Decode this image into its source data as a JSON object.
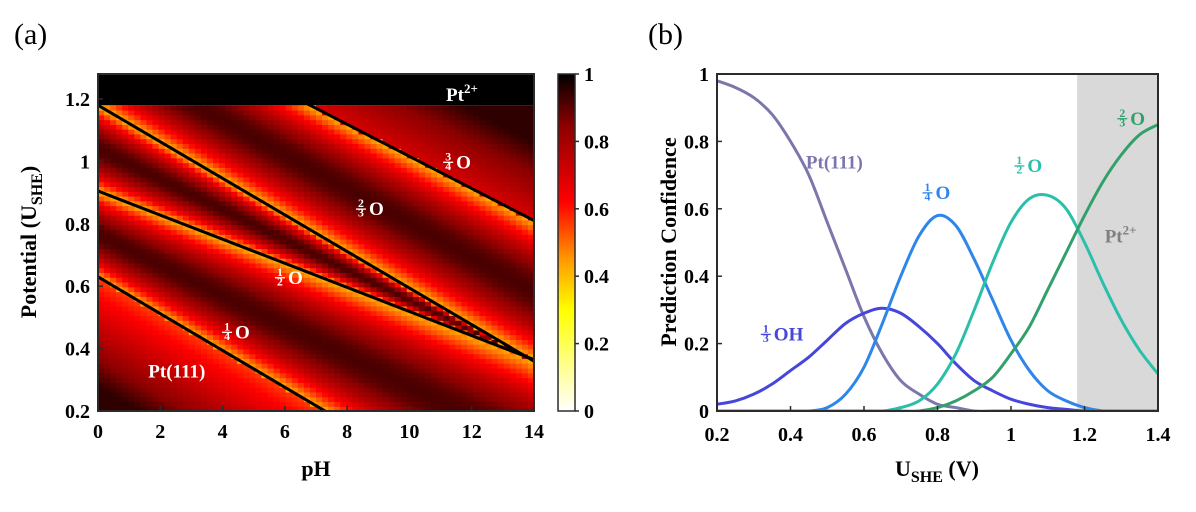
{
  "panels": {
    "a": {
      "label": "(a)"
    },
    "b": {
      "label": "(b)"
    }
  },
  "colors": {
    "pt111": "#7b77ad",
    "third_oh": "#4646dc",
    "quarter_o": "#2e86ea",
    "half_o": "#2bbfaa",
    "twothird_o": "#33a06b",
    "pt2_region": "#d9d9d9",
    "heatmap_white": "#ffffff",
    "heatmap_yellow": "#ffff00",
    "heatmap_orange": "#ff9900",
    "heatmap_red": "#ff0000",
    "heatmap_dark": "#8b0000",
    "heatmap_black": "#000000"
  },
  "chart_data": [
    {
      "type": "heatmap",
      "title": "",
      "xlabel": "pH",
      "ylabel": "Potential (U",
      "ylabel_sub": "SHE",
      "ylabel_end": ")",
      "xlim": [
        0,
        14
      ],
      "ylim": [
        0.2,
        1.28
      ],
      "xticks": [
        "0",
        "2",
        "4",
        "6",
        "8",
        "10",
        "12",
        "14"
      ],
      "yticks": [
        "0.2",
        "0.4",
        "0.6",
        "0.8",
        "1",
        "1.2"
      ],
      "colorbar": {
        "range": [
          0,
          1
        ],
        "ticks": [
          "0",
          "0.2",
          "0.4",
          "0.6",
          "0.8",
          "1"
        ]
      },
      "top_band": {
        "from_potential": 1.18,
        "label": "Pt",
        "label_sup": "2+"
      },
      "boundaries": [
        {
          "potential_at_pH0": 0.63,
          "slope_V_per_pH": -0.059
        },
        {
          "potential_at_pH0": 0.905,
          "slope_V_per_pH": -0.0386
        },
        {
          "potential_at_pH0": 1.18,
          "slope_V_per_pH": -0.0586
        },
        {
          "potential_at_pH0": 1.53,
          "slope_V_per_pH": -0.0514
        }
      ],
      "region_labels": [
        {
          "num": "",
          "den": "",
          "text": "Pt(111)",
          "pH": 2.0,
          "U": 0.33
        },
        {
          "num": "1",
          "den": "4",
          "text": "O",
          "pH": 4.4,
          "U": 0.455
        },
        {
          "num": "1",
          "den": "2",
          "text": "O",
          "pH": 6.1,
          "U": 0.63
        },
        {
          "num": "2",
          "den": "3",
          "text": "O",
          "pH": 8.7,
          "U": 0.85
        },
        {
          "num": "3",
          "den": "4",
          "text": "O",
          "pH": 11.5,
          "U": 1.0
        }
      ]
    },
    {
      "type": "line",
      "title": "",
      "xlabel": "U",
      "xlabel_sub": "SHE",
      "xlabel_end": " (V)",
      "ylabel": "Prediction Confidence",
      "xlim": [
        0.2,
        1.4
      ],
      "ylim": [
        0,
        1
      ],
      "xticks": [
        "0.2",
        "0.4",
        "0.6",
        "0.8",
        "1",
        "1.2",
        "1.4"
      ],
      "yticks": [
        "0",
        "0.2",
        "0.4",
        "0.6",
        "0.8",
        "1"
      ],
      "shaded_region": {
        "from": 1.18,
        "to": 1.4,
        "label": "Pt",
        "label_sup": "2+"
      },
      "x": [
        0.2,
        0.25,
        0.3,
        0.35,
        0.4,
        0.45,
        0.5,
        0.55,
        0.6,
        0.65,
        0.7,
        0.75,
        0.8,
        0.85,
        0.9,
        0.95,
        1.0,
        1.05,
        1.1,
        1.15,
        1.2,
        1.25,
        1.3,
        1.35,
        1.4
      ],
      "series": [
        {
          "name": "Pt(111)",
          "num": "",
          "den": "",
          "label": "Pt(111)",
          "color_key": "pt111",
          "values": [
            0.98,
            0.96,
            0.93,
            0.88,
            0.8,
            0.7,
            0.56,
            0.42,
            0.28,
            0.17,
            0.09,
            0.05,
            0.02,
            0.01,
            0.0,
            0.0,
            0.0,
            0.0,
            0.0,
            0.0,
            0.0,
            0.0,
            0.0,
            0.0,
            0.0
          ],
          "label_pos": [
            0.48,
            0.74
          ]
        },
        {
          "name": "1/3 OH",
          "num": "1",
          "den": "3",
          "label": "OH",
          "color_key": "third_oh",
          "values": [
            0.02,
            0.03,
            0.05,
            0.08,
            0.12,
            0.16,
            0.21,
            0.26,
            0.29,
            0.305,
            0.29,
            0.25,
            0.2,
            0.14,
            0.09,
            0.06,
            0.035,
            0.02,
            0.01,
            0.005,
            0.0,
            0.0,
            0.0,
            0.0,
            0.0
          ],
          "label_pos": [
            0.36,
            0.23
          ]
        },
        {
          "name": "1/4 O",
          "num": "1",
          "den": "4",
          "label": "O",
          "color_key": "quarter_o",
          "values": [
            0.0,
            0.0,
            0.0,
            0.0,
            0.0,
            0.0,
            0.01,
            0.05,
            0.13,
            0.26,
            0.4,
            0.52,
            0.58,
            0.55,
            0.45,
            0.33,
            0.21,
            0.12,
            0.06,
            0.03,
            0.01,
            0.0,
            0.0,
            0.0,
            0.0
          ],
          "label_pos": [
            0.8,
            0.65
          ]
        },
        {
          "name": "1/2 O",
          "num": "1",
          "den": "2",
          "label": "O",
          "color_key": "half_o",
          "values": [
            0.0,
            0.0,
            0.0,
            0.0,
            0.0,
            0.0,
            0.0,
            0.0,
            0.0,
            0.0,
            0.01,
            0.03,
            0.08,
            0.17,
            0.3,
            0.44,
            0.56,
            0.63,
            0.64,
            0.6,
            0.5,
            0.38,
            0.27,
            0.18,
            0.11
          ],
          "label_pos": [
            1.05,
            0.73
          ]
        },
        {
          "name": "2/3 O",
          "num": "2",
          "den": "3",
          "label": "O",
          "color_key": "twothird_o",
          "values": [
            0.0,
            0.0,
            0.0,
            0.0,
            0.0,
            0.0,
            0.0,
            0.0,
            0.0,
            0.0,
            0.0,
            0.0,
            0.01,
            0.03,
            0.06,
            0.1,
            0.17,
            0.25,
            0.36,
            0.47,
            0.58,
            0.68,
            0.76,
            0.82,
            0.85
          ],
          "label_pos": [
            1.33,
            0.87
          ]
        }
      ]
    }
  ]
}
